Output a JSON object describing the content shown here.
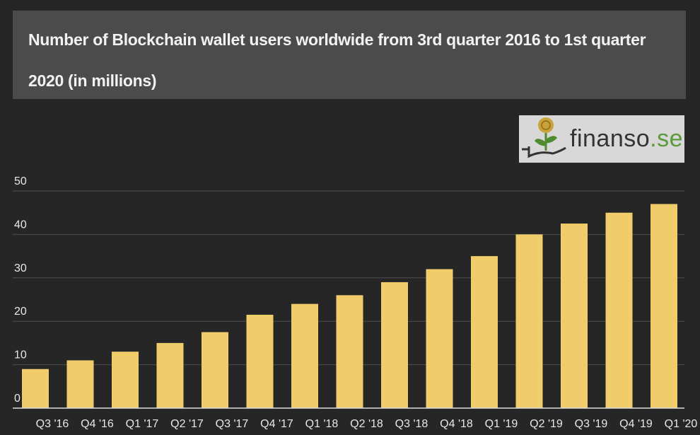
{
  "chart_data": {
    "type": "bar",
    "title": "Number of Blockchain wallet users worldwide from 3rd quarter 2016 to 1st quarter 2020 (in millions)",
    "categories": [
      "Q3 '16",
      "Q4 '16",
      "Q1 '17",
      "Q2 '17",
      "Q3 '17",
      "Q4 '17",
      "Q1 '18",
      "Q2 '18",
      "Q3 '18",
      "Q4 '18",
      "Q1 '19",
      "Q2 '19",
      "Q3 '19",
      "Q4 '19",
      "Q1 '20"
    ],
    "values": [
      9,
      11,
      13,
      15,
      17.5,
      21.5,
      24,
      26,
      29,
      32,
      35,
      40,
      42.5,
      45,
      47
    ],
    "color": "#f0cd6a",
    "ylim": [
      0,
      50
    ],
    "yticks": [
      0,
      10,
      20,
      30,
      40,
      50
    ],
    "grid": true
  },
  "logo": {
    "text": "finanso",
    "suffix": ".se"
  }
}
